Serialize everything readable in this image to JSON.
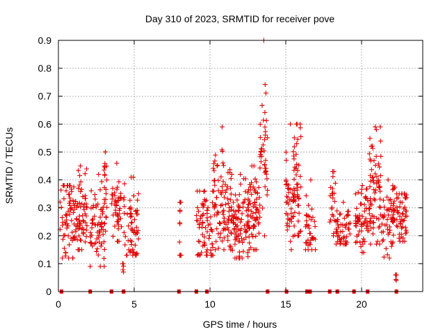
{
  "chart_data": {
    "type": "scatter",
    "title": "Day 310 of 2023, SRMTID for receiver pove",
    "xlabel": "GPS time / hours",
    "ylabel": "SRMTID / TECUs",
    "xlim": [
      0,
      24
    ],
    "ylim": [
      0,
      0.9
    ],
    "xticks": [
      "0",
      "5",
      "10",
      "15",
      "20"
    ],
    "xtick_values": [
      0,
      5,
      10,
      15,
      20
    ],
    "yticks": [
      "0",
      "0.1",
      "0.2",
      "0.3",
      "0.4",
      "0.5",
      "0.6",
      "0.7",
      "0.8",
      "0.9"
    ],
    "ytick_values": [
      0,
      0.1,
      0.2,
      0.3,
      0.4,
      0.5,
      0.6,
      0.7,
      0.8,
      0.9
    ],
    "grid": true,
    "marker": "+",
    "color": "#e00000",
    "clusters": [
      {
        "x_range": [
          0.1,
          1.05
        ],
        "y_center": 0.27,
        "y_spread": 0.08,
        "n": 60,
        "y_max": 0.38,
        "y_min": 0.12
      },
      {
        "x_range": [
          1.0,
          1.9
        ],
        "y_center": 0.27,
        "y_spread": 0.08,
        "n": 70,
        "y_max": 0.45,
        "y_min": 0.15
      },
      {
        "x_range": [
          2.1,
          3.2
        ],
        "y_center": 0.25,
        "y_spread": 0.08,
        "n": 70,
        "y_max": 0.42,
        "y_min": 0.09
      },
      {
        "x_range": [
          3.0,
          3.2
        ],
        "y_center": 0.4,
        "y_spread": 0.06,
        "n": 12,
        "y_max": 0.5,
        "y_min": 0.33
      },
      {
        "x_range": [
          3.5,
          4.2
        ],
        "y_center": 0.28,
        "y_spread": 0.06,
        "n": 45,
        "y_max": 0.46,
        "y_min": 0.18
      },
      {
        "x_range": [
          4.2,
          4.35
        ],
        "y_center": 0.085,
        "y_spread": 0.01,
        "n": 3,
        "y_max": 0.1,
        "y_min": 0.07
      },
      {
        "x_range": [
          4.3,
          5.3
        ],
        "y_center": 0.25,
        "y_spread": 0.07,
        "n": 60,
        "y_max": 0.41,
        "y_min": 0.13
      },
      {
        "x_range": [
          7.95,
          8.1
        ],
        "y_center": 0.2,
        "y_spread": 0.08,
        "n": 10,
        "y_max": 0.32,
        "y_min": 0.13
      },
      {
        "x_range": [
          9.1,
          10.2
        ],
        "y_center": 0.25,
        "y_spread": 0.07,
        "n": 70,
        "y_max": 0.36,
        "y_min": 0.13
      },
      {
        "x_range": [
          10.2,
          11.4
        ],
        "y_center": 0.3,
        "y_spread": 0.08,
        "n": 90,
        "y_max": 0.59,
        "y_min": 0.15
      },
      {
        "x_range": [
          11.4,
          12.6
        ],
        "y_center": 0.24,
        "y_spread": 0.07,
        "n": 90,
        "y_max": 0.42,
        "y_min": 0.12
      },
      {
        "x_range": [
          12.5,
          13.3
        ],
        "y_center": 0.3,
        "y_spread": 0.07,
        "n": 60,
        "y_max": 0.45,
        "y_min": 0.15
      },
      {
        "x_range": [
          13.3,
          13.8
        ],
        "y_center": 0.5,
        "y_spread": 0.1,
        "n": 40,
        "y_max": 0.9,
        "y_min": 0.2
      },
      {
        "x_range": [
          15.0,
          15.6
        ],
        "y_center": 0.3,
        "y_spread": 0.08,
        "n": 50,
        "y_max": 0.6,
        "y_min": 0.15
      },
      {
        "x_range": [
          15.5,
          16.0
        ],
        "y_center": 0.4,
        "y_spread": 0.12,
        "n": 40,
        "y_max": 0.6,
        "y_min": 0.2
      },
      {
        "x_range": [
          16.3,
          17.0
        ],
        "y_center": 0.22,
        "y_spread": 0.05,
        "n": 35,
        "y_max": 0.4,
        "y_min": 0.15
      },
      {
        "x_range": [
          17.9,
          18.3
        ],
        "y_center": 0.3,
        "y_spread": 0.07,
        "n": 20,
        "y_max": 0.43,
        "y_min": 0.2
      },
      {
        "x_range": [
          18.3,
          19.3
        ],
        "y_center": 0.22,
        "y_spread": 0.05,
        "n": 50,
        "y_max": 0.32,
        "y_min": 0.17
      },
      {
        "x_range": [
          19.6,
          20.5
        ],
        "y_center": 0.25,
        "y_spread": 0.06,
        "n": 60,
        "y_max": 0.38,
        "y_min": 0.14
      },
      {
        "x_range": [
          20.5,
          21.3
        ],
        "y_center": 0.35,
        "y_spread": 0.1,
        "n": 70,
        "y_max": 0.59,
        "y_min": 0.17
      },
      {
        "x_range": [
          21.3,
          22.2
        ],
        "y_center": 0.26,
        "y_spread": 0.06,
        "n": 60,
        "y_max": 0.4,
        "y_min": 0.12
      },
      {
        "x_range": [
          22.2,
          22.35
        ],
        "y_center": 0.05,
        "y_spread": 0.01,
        "n": 3,
        "y_max": 0.06,
        "y_min": 0.04
      },
      {
        "x_range": [
          22.3,
          23.0
        ],
        "y_center": 0.27,
        "y_spread": 0.05,
        "n": 50,
        "y_max": 0.35,
        "y_min": 0.18
      }
    ],
    "zero_markers_x": [
      0.2,
      2.1,
      3.5,
      4.3,
      7.95,
      9.1,
      9.8,
      13.8,
      15.05,
      16.4,
      16.6,
      17.9,
      18.4,
      19.5,
      20.4,
      22.3
    ]
  }
}
